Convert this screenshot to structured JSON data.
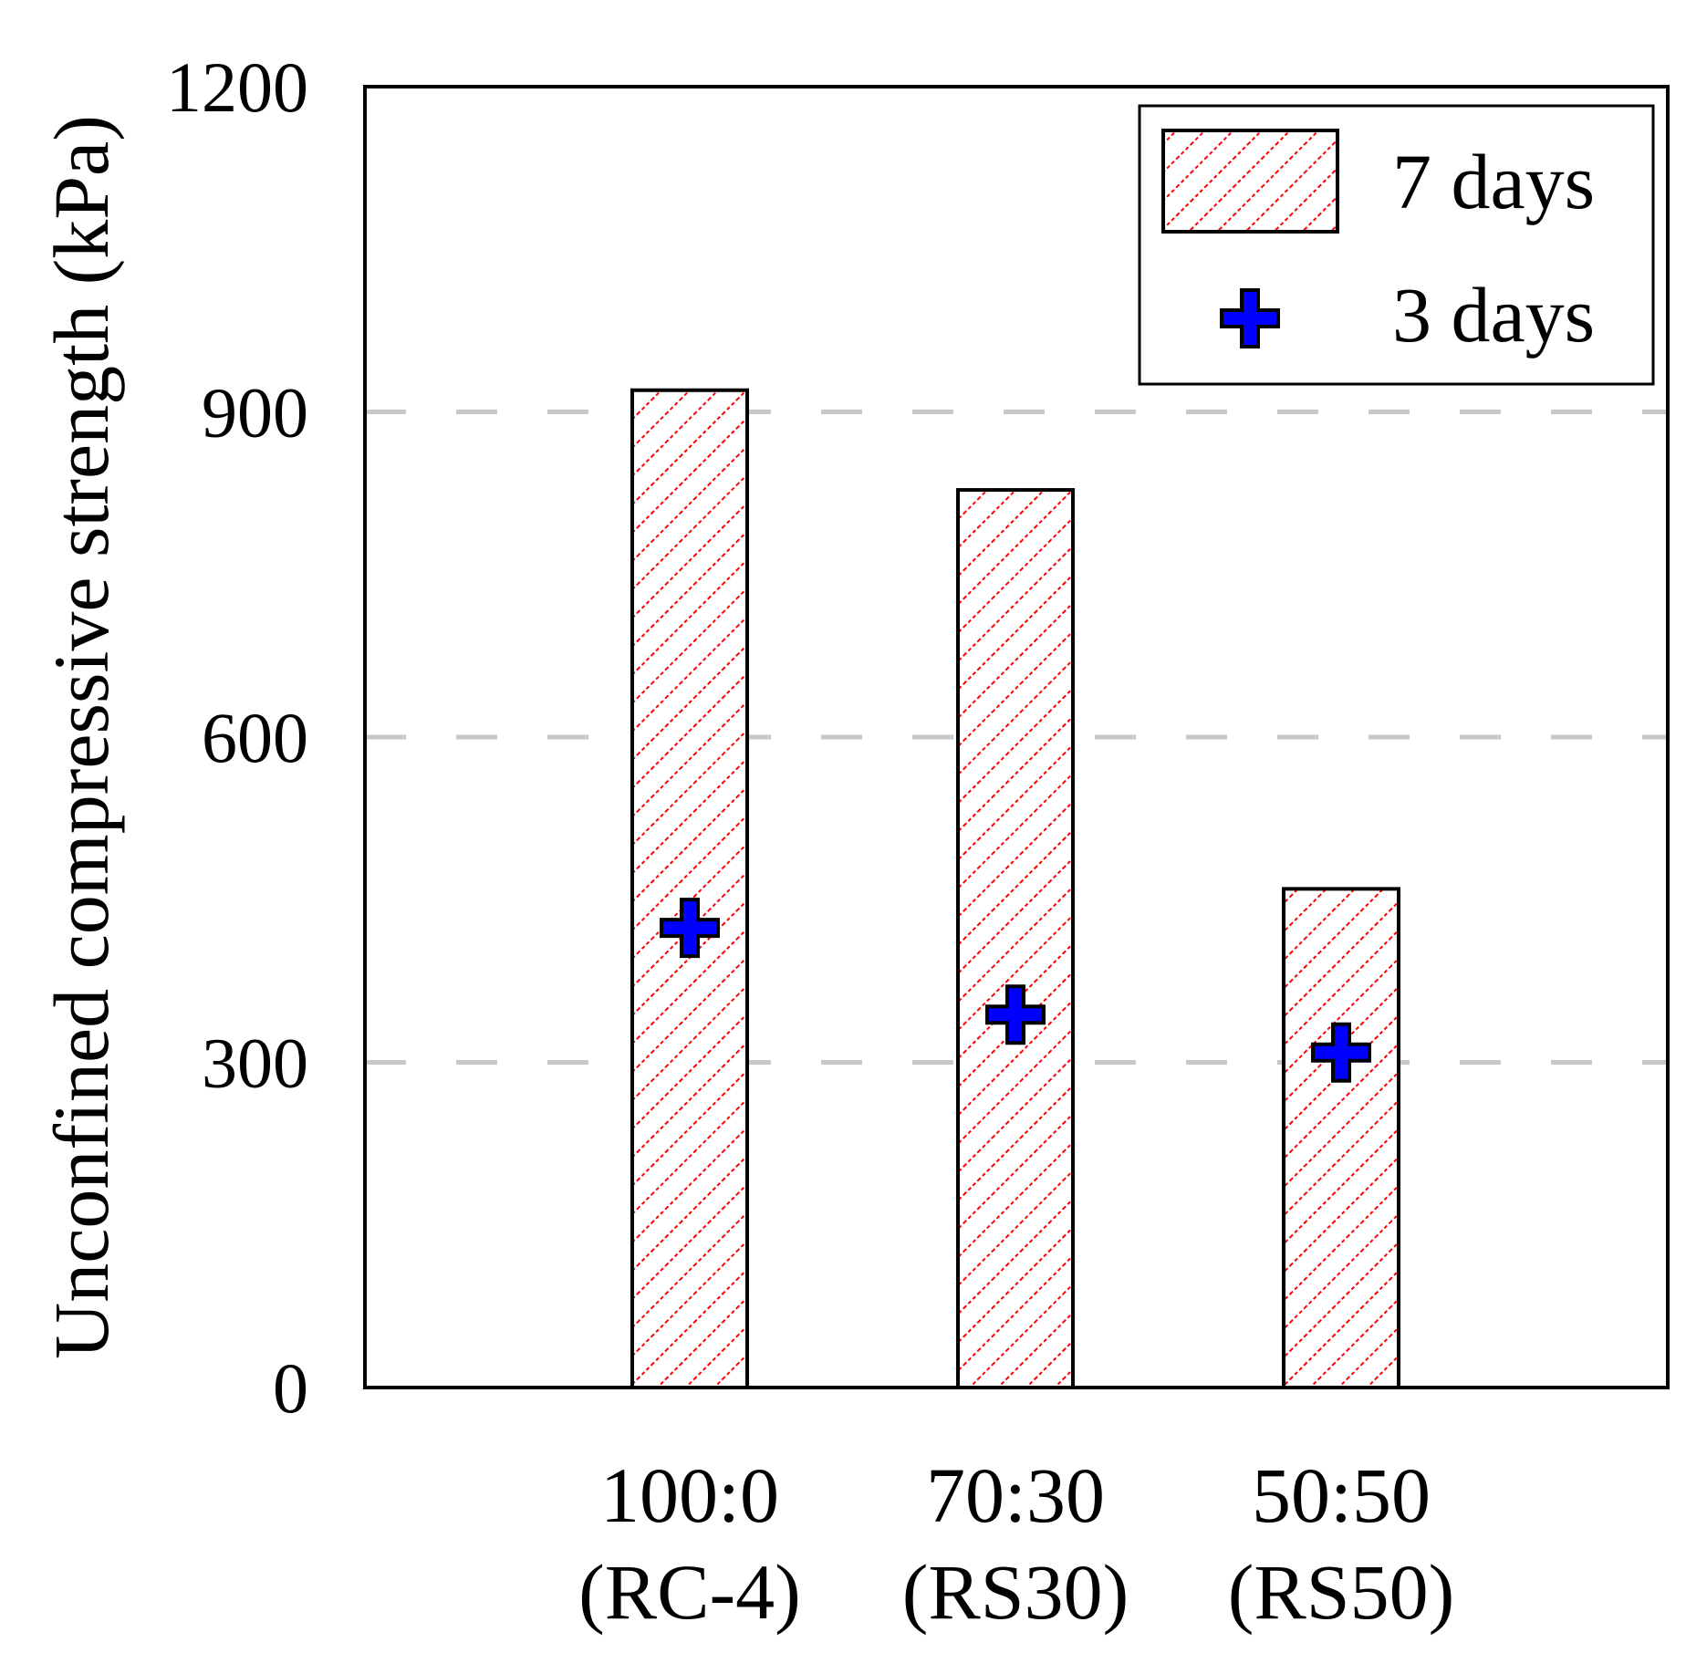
{
  "chart_data": {
    "type": "bar",
    "title": "",
    "xlabel": "",
    "ylabel": "Unconfined compressive strength (kPa)",
    "ylim": [
      0,
      1200
    ],
    "yticks": [
      0,
      300,
      600,
      900,
      1200
    ],
    "grid_y_dashed": [
      300,
      600,
      900
    ],
    "categories": [
      {
        "line1": "100:0",
        "line2": "(RC-4)"
      },
      {
        "line1": "70:30",
        "line2": "(RS30)"
      },
      {
        "line1": "50:50",
        "line2": "(RS50)"
      }
    ],
    "series": [
      {
        "name": "7 days",
        "kind": "bar",
        "values": [
          920,
          828,
          460
        ],
        "pattern_color": "#ff0000",
        "edge_color": "#000000"
      },
      {
        "name": "3 days",
        "kind": "marker",
        "marker": "plus",
        "values": [
          424,
          344,
          309
        ],
        "color": "#0000ff",
        "edge_color": "#000000"
      }
    ],
    "legend": {
      "position": "top-right"
    }
  }
}
